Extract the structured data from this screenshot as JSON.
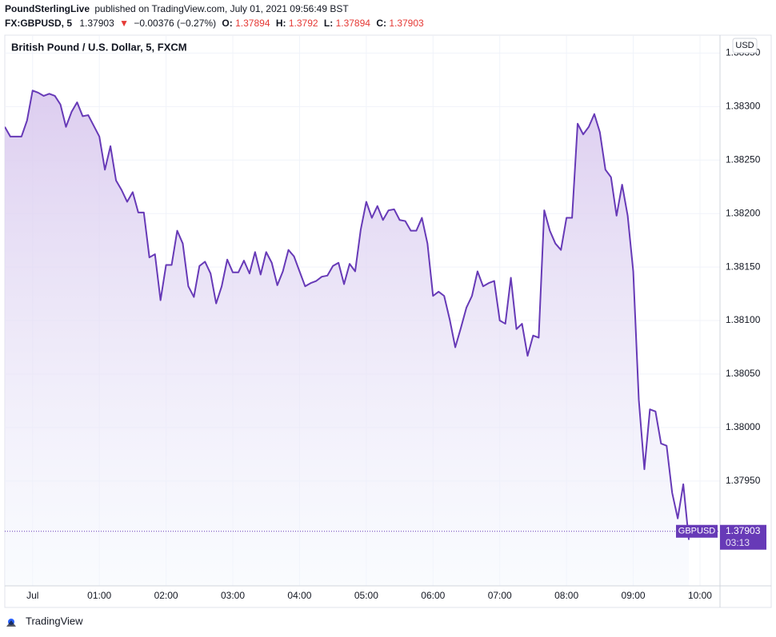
{
  "header": {
    "publisher": "PoundSterlingLive",
    "published": "published on TradingView.com, July 01, 2021 09:56:49 BST",
    "symbol": "FX:GBPUSD, 5",
    "price": 1.37903,
    "direction": "▼",
    "change": "−0.00376 (−0.27%)",
    "open_label": "O:",
    "open": 1.37894,
    "high_label": "H:",
    "high": 1.3792,
    "low_label": "L:",
    "low": 1.37894,
    "close_label": "C:",
    "close": 1.37903
  },
  "footer": {
    "brand": "TradingView"
  },
  "chart_data": {
    "type": "line",
    "title": "British Pound / U.S. Dollar, 5, FXCM",
    "currency": "USD",
    "x": [
      "23:35",
      "23:40",
      "23:45",
      "23:50",
      "23:55",
      "00:00",
      "00:05",
      "00:10",
      "00:15",
      "00:20",
      "00:25",
      "00:30",
      "00:35",
      "00:40",
      "00:45",
      "00:50",
      "00:55",
      "01:00",
      "01:05",
      "01:10",
      "01:15",
      "01:20",
      "01:25",
      "01:30",
      "01:35",
      "01:40",
      "01:45",
      "01:50",
      "01:55",
      "02:00",
      "02:05",
      "02:10",
      "02:15",
      "02:20",
      "02:25",
      "02:30",
      "02:35",
      "02:40",
      "02:45",
      "02:50",
      "02:55",
      "03:00",
      "03:05",
      "03:10",
      "03:15",
      "03:20",
      "03:25",
      "03:30",
      "03:35",
      "03:40",
      "03:45",
      "03:50",
      "03:55",
      "04:00",
      "04:05",
      "04:10",
      "04:15",
      "04:20",
      "04:25",
      "04:30",
      "04:35",
      "04:40",
      "04:45",
      "04:50",
      "04:55",
      "05:00",
      "05:05",
      "05:10",
      "05:15",
      "05:20",
      "05:25",
      "05:30",
      "05:35",
      "05:40",
      "05:45",
      "05:50",
      "05:55",
      "06:00",
      "06:05",
      "06:10",
      "06:15",
      "06:20",
      "06:25",
      "06:30",
      "06:35",
      "06:40",
      "06:45",
      "06:50",
      "06:55",
      "07:00",
      "07:05",
      "07:10",
      "07:15",
      "07:20",
      "07:25",
      "07:30",
      "07:35",
      "07:40",
      "07:45",
      "07:50",
      "07:55",
      "08:00",
      "08:05",
      "08:10",
      "08:15",
      "08:20",
      "08:25",
      "08:30",
      "08:35",
      "08:40",
      "08:45",
      "08:50",
      "08:55",
      "09:00",
      "09:05",
      "09:10",
      "09:15",
      "09:20",
      "09:25",
      "09:30",
      "09:35",
      "09:40",
      "09:45",
      "09:50"
    ],
    "series": [
      {
        "name": "GBPUSD",
        "color": "#673ab7",
        "values": [
          1.38281,
          1.38272,
          1.38272,
          1.38272,
          1.38287,
          1.38315,
          1.38313,
          1.3831,
          1.38312,
          1.3831,
          1.38302,
          1.38281,
          1.38295,
          1.38304,
          1.38291,
          1.38292,
          1.38282,
          1.38272,
          1.38241,
          1.38263,
          1.38231,
          1.38222,
          1.38211,
          1.3822,
          1.38201,
          1.38201,
          1.38159,
          1.38162,
          1.38119,
          1.38152,
          1.38152,
          1.38184,
          1.38172,
          1.38132,
          1.38122,
          1.38151,
          1.38155,
          1.38144,
          1.38116,
          1.38132,
          1.38157,
          1.38145,
          1.38145,
          1.38156,
          1.38144,
          1.38164,
          1.38143,
          1.38164,
          1.38154,
          1.38133,
          1.38146,
          1.38166,
          1.3816,
          1.38146,
          1.38132,
          1.38135,
          1.38137,
          1.38141,
          1.38142,
          1.38151,
          1.38154,
          1.38134,
          1.38153,
          1.38146,
          1.38185,
          1.38211,
          1.38196,
          1.38207,
          1.38194,
          1.38203,
          1.38204,
          1.38194,
          1.38193,
          1.38184,
          1.38184,
          1.38196,
          1.38172,
          1.38123,
          1.38127,
          1.38123,
          1.38101,
          1.38075,
          1.38093,
          1.38112,
          1.38123,
          1.38146,
          1.38132,
          1.38135,
          1.38137,
          1.381,
          1.38097,
          1.3814,
          1.38092,
          1.38097,
          1.38067,
          1.38086,
          1.38084,
          1.38203,
          1.38184,
          1.38172,
          1.38166,
          1.38196,
          1.38196,
          1.38284,
          1.38274,
          1.38281,
          1.38293,
          1.38276,
          1.38241,
          1.38234,
          1.38198,
          1.38227,
          1.38198,
          1.38146,
          1.38026,
          1.37961,
          1.38017,
          1.38015,
          1.37985,
          1.37983,
          1.37939,
          1.37915,
          1.37947,
          1.37895
        ]
      }
    ],
    "last_price": 1.37903,
    "countdown": "03:13",
    "xlim": [
      "23:35",
      "10:18"
    ],
    "xticks": [
      {
        "value": "00:00",
        "label": "Jul"
      },
      "01:00",
      "02:00",
      "03:00",
      "04:00",
      "05:00",
      "06:00",
      "07:00",
      "08:00",
      "09:00",
      "10:00"
    ],
    "ylim": [
      1.37852,
      1.38366
    ],
    "yticks": [
      {
        "value": 1.3795,
        "label": "1.37950"
      },
      {
        "value": 1.38,
        "label": "1.38000"
      },
      {
        "value": 1.3805,
        "label": "1.38050"
      },
      {
        "value": 1.381,
        "label": "1.38100"
      },
      {
        "value": 1.3815,
        "label": "1.38150"
      },
      {
        "value": 1.382,
        "label": "1.38200"
      },
      {
        "value": 1.3825,
        "label": "1.38250"
      },
      {
        "value": 1.383,
        "label": "1.38300"
      },
      {
        "value": 1.3835,
        "label": "1.38350"
      }
    ],
    "grid": true
  }
}
